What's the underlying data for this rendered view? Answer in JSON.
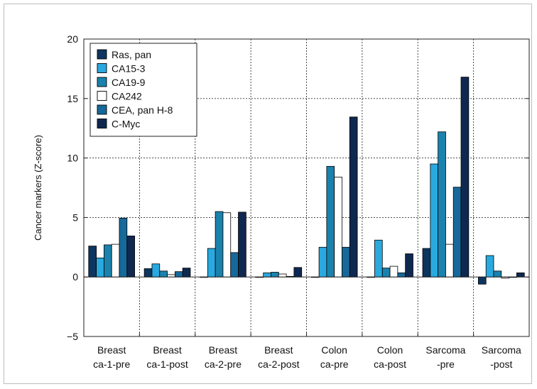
{
  "chart_data": {
    "type": "bar",
    "ylabel": "Cancer markers (Z-score)",
    "ylim": [
      -5,
      20
    ],
    "yticks": [
      -5,
      0,
      5,
      10,
      15,
      20
    ],
    "ytick_labels": [
      "−5",
      "0",
      "5",
      "10",
      "15",
      "20"
    ],
    "grid": true,
    "legend_position": "top-left",
    "categories": [
      [
        "Breast",
        "ca-1-pre"
      ],
      [
        "Breast",
        "ca-1-post"
      ],
      [
        "Breast",
        "ca-2-pre"
      ],
      [
        "Breast",
        "ca-2-post"
      ],
      [
        "Colon",
        "ca-pre"
      ],
      [
        "Colon",
        "ca-post"
      ],
      [
        "Sarcoma",
        "-pre"
      ],
      [
        "Sarcoma",
        "-post"
      ]
    ],
    "series": [
      {
        "name": "Ras, pan",
        "color": "#0d3560",
        "values": [
          2.6,
          0.7,
          0.0,
          0.0,
          0.0,
          0.0,
          2.4,
          -0.6
        ]
      },
      {
        "name": "CA15-3",
        "color": "#29a9df",
        "values": [
          1.6,
          1.1,
          2.4,
          0.35,
          2.5,
          3.1,
          9.5,
          1.8
        ]
      },
      {
        "name": "CA19-9",
        "color": "#1a82ad",
        "values": [
          2.7,
          0.5,
          5.5,
          0.4,
          9.3,
          0.75,
          12.2,
          0.5
        ]
      },
      {
        "name": "CA242",
        "color": "#ffffff",
        "values": [
          2.75,
          0.2,
          5.4,
          0.25,
          8.4,
          0.9,
          2.75,
          -0.1
        ]
      },
      {
        "name": "CEA, pan H-8",
        "color": "#16699a",
        "values": [
          4.95,
          0.45,
          2.05,
          0.05,
          2.5,
          0.35,
          7.55,
          0.0
        ]
      },
      {
        "name": "C-Myc",
        "color": "#0f2850",
        "values": [
          3.45,
          0.75,
          5.45,
          0.8,
          13.45,
          1.95,
          16.8,
          0.35
        ]
      }
    ]
  }
}
